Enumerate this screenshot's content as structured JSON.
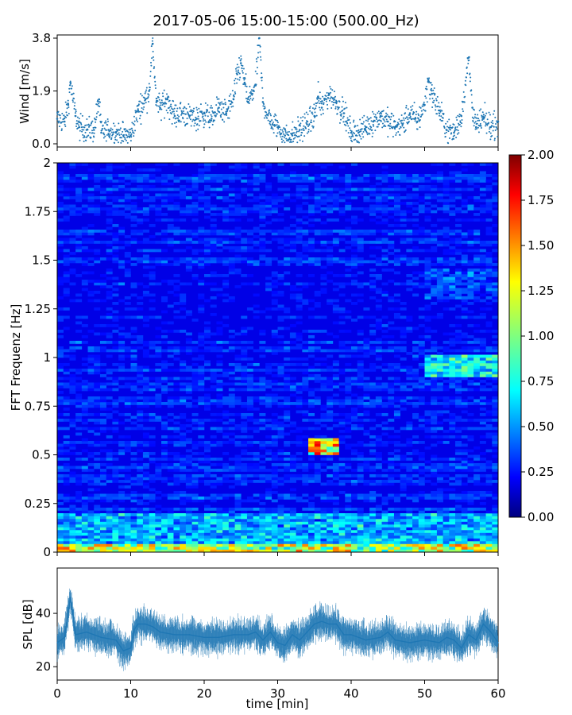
{
  "chart_data": [
    {
      "type": "scatter",
      "title": "2017-05-06 15:00-15:00 (500.00_Hz)",
      "ylabel": "Wind [m/s]",
      "ylim": [
        0,
        3.8
      ],
      "yticks": [
        0.0,
        1.9,
        3.8
      ],
      "ytick_labels": [
        "0.0",
        "1.9",
        "3.8"
      ],
      "xlim": [
        0,
        60
      ],
      "color": "#1f77b4",
      "series": [
        {
          "name": "wind",
          "x": [
            0,
            1,
            1.5,
            1.8,
            2.5,
            3,
            4,
            5,
            5.7,
            6,
            7,
            8,
            9,
            10,
            11,
            12,
            12.5,
            13,
            13.5,
            14,
            15,
            16,
            17,
            18,
            19,
            20,
            21,
            22,
            23,
            24,
            24.5,
            25,
            25.5,
            26,
            27,
            27.5,
            28,
            29,
            30,
            31,
            32,
            33,
            34,
            35,
            35.5,
            36,
            37,
            38,
            39,
            40,
            41,
            42,
            43,
            44,
            45,
            46,
            47,
            48,
            49,
            50,
            50.5,
            51,
            52,
            53,
            54,
            55,
            56,
            56.5,
            57,
            58,
            59,
            60
          ],
          "values": [
            0.9,
            0.8,
            1.4,
            2.2,
            1.0,
            0.6,
            0.5,
            0.5,
            1.6,
            0.4,
            0.5,
            0.4,
            0.3,
            0.3,
            1.2,
            1.6,
            1.9,
            3.6,
            1.5,
            1.3,
            1.6,
            1.0,
            1.1,
            1.0,
            0.9,
            1.1,
            0.9,
            1.3,
            1.1,
            1.6,
            2.5,
            2.9,
            2.2,
            1.5,
            2.1,
            3.8,
            1.5,
            0.8,
            0.6,
            0.3,
            0.3,
            0.5,
            0.7,
            1.0,
            1.7,
            1.3,
            1.8,
            1.5,
            1.1,
            0.4,
            0.4,
            0.6,
            0.8,
            1.0,
            0.8,
            0.6,
            0.7,
            1.1,
            0.8,
            1.4,
            2.3,
            1.8,
            1.2,
            0.5,
            0.4,
            1.0,
            3.1,
            1.3,
            0.6,
            0.9,
            0.6,
            0.8
          ]
        }
      ]
    },
    {
      "type": "heatmap",
      "ylabel": "FFT Frequenz [Hz]",
      "xlim": [
        0,
        60
      ],
      "ylim": [
        0,
        2
      ],
      "yticks": [
        0,
        0.25,
        0.5,
        0.75,
        1,
        1.25,
        1.5,
        1.75,
        2
      ],
      "ytick_labels": [
        "0",
        "0.25",
        "0.5",
        "0.75",
        "1",
        "1.25",
        "1.5",
        "1.75",
        "2"
      ],
      "colormap": "jet",
      "colorbar": {
        "vmin": 0,
        "vmax": 2,
        "ticks": [
          0,
          0.25,
          0.5,
          0.75,
          1,
          1.25,
          1.5,
          1.75,
          2
        ],
        "tick_labels": [
          "0.00",
          "0.25",
          "0.50",
          "0.75",
          "1.00",
          "1.25",
          "1.50",
          "1.75",
          "2.00"
        ]
      },
      "features": [
        {
          "x_range": [
            0,
            60
          ],
          "y_range": [
            0,
            0.04
          ],
          "level": 1.35,
          "label": "low-frequency band"
        },
        {
          "x_range": [
            0,
            60
          ],
          "y_range": [
            0.04,
            0.2
          ],
          "level": 0.7
        },
        {
          "x_range": [
            34,
            38
          ],
          "y_range": [
            0.5,
            0.58
          ],
          "level": 1.5
        },
        {
          "x_range": [
            50,
            60
          ],
          "y_range": [
            0.9,
            1.02
          ],
          "level": 0.85
        },
        {
          "x_range": [
            50,
            60
          ],
          "y_range": [
            1.3,
            1.45
          ],
          "level": 0.45
        },
        {
          "x_range": [
            0,
            60
          ],
          "y_range": [
            0.2,
            2
          ],
          "level": 0.2
        }
      ]
    },
    {
      "type": "line",
      "xlabel": "time [min]",
      "ylabel": "SPL [dB]",
      "xlim": [
        0,
        60
      ],
      "xticks": [
        0,
        10,
        20,
        30,
        40,
        50,
        60
      ],
      "xtick_labels": [
        "0",
        "10",
        "20",
        "30",
        "40",
        "50",
        "60"
      ],
      "ylim": [
        15,
        57
      ],
      "yticks": [
        20,
        40
      ],
      "ytick_labels": [
        "20",
        "40"
      ],
      "color": "#1f77b4",
      "series": [
        {
          "name": "SPL",
          "x": [
            0,
            1,
            1.8,
            2.5,
            4,
            6,
            8,
            9,
            10,
            10.5,
            11,
            12,
            13,
            14,
            16,
            18,
            20,
            22,
            24,
            26,
            27,
            28,
            29,
            30,
            31,
            32,
            33,
            34,
            35,
            36,
            37,
            38,
            39,
            40,
            42,
            44,
            45,
            46,
            48,
            50,
            52,
            53,
            54,
            55,
            56,
            57,
            58,
            59,
            60
          ],
          "values": [
            29,
            31,
            46,
            32,
            33,
            31,
            30,
            26,
            27,
            34,
            36,
            36,
            35,
            33,
            32,
            32,
            31,
            31,
            32,
            32,
            33,
            30,
            33,
            29,
            28,
            32,
            30,
            33,
            36,
            37,
            36,
            36,
            32,
            32,
            30,
            31,
            33,
            30,
            29,
            30,
            29,
            31,
            30,
            27,
            32,
            30,
            36,
            33,
            29
          ]
        }
      ]
    }
  ]
}
